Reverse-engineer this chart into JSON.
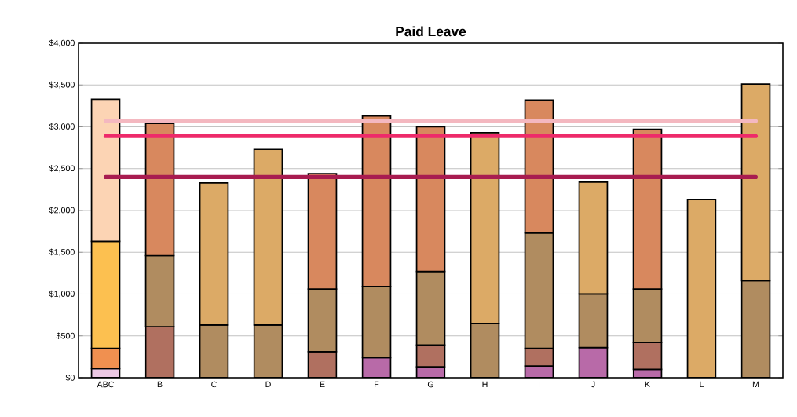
{
  "chart_data": {
    "type": "bar",
    "title": "Paid Leave",
    "stacked": true,
    "grid": "y",
    "categories": [
      "ABC",
      "B",
      "C",
      "D",
      "E",
      "F",
      "G",
      "H",
      "I",
      "J",
      "K",
      "L",
      "M"
    ],
    "ylim": [
      0,
      4000
    ],
    "yticks": [
      {
        "value": 0,
        "label": "$0"
      },
      {
        "value": 500,
        "label": "$500"
      },
      {
        "value": 1000,
        "label": "$1,000"
      },
      {
        "value": 1500,
        "label": "$1,500"
      },
      {
        "value": 2000,
        "label": "$2,000"
      },
      {
        "value": 2500,
        "label": "$2,500"
      },
      {
        "value": 3000,
        "label": "$3,000"
      },
      {
        "value": 3500,
        "label": "$3,500"
      },
      {
        "value": 4000,
        "label": "$4,000"
      }
    ],
    "series": [
      {
        "color": "#ecc8e4",
        "values": [
          110,
          null,
          null,
          null,
          null,
          null,
          null,
          null,
          null,
          null,
          null,
          null,
          null
        ]
      },
      {
        "color": "#f09050",
        "values": [
          240,
          null,
          null,
          null,
          null,
          null,
          null,
          null,
          null,
          null,
          null,
          null,
          null
        ]
      },
      {
        "color": "#fcc050",
        "values": [
          1280,
          null,
          null,
          null,
          null,
          null,
          null,
          null,
          null,
          null,
          null,
          null,
          null
        ]
      },
      {
        "color": "#fcd4b4",
        "values": [
          1700,
          null,
          null,
          null,
          null,
          null,
          null,
          null,
          null,
          null,
          null,
          null,
          null
        ]
      },
      {
        "color": "#b86aa8",
        "values": [
          null,
          null,
          null,
          null,
          null,
          240,
          130,
          null,
          140,
          360,
          100,
          null,
          null
        ]
      },
      {
        "color": "#b07060",
        "values": [
          null,
          610,
          null,
          null,
          310,
          null,
          260,
          null,
          210,
          null,
          320,
          null,
          null
        ]
      },
      {
        "color": "#b08c60",
        "values": [
          null,
          850,
          630,
          630,
          750,
          850,
          880,
          650,
          1380,
          640,
          640,
          null,
          1160
        ]
      },
      {
        "color": "#dcaa66",
        "values": [
          null,
          null,
          1700,
          2100,
          null,
          null,
          null,
          2280,
          null,
          1340,
          null,
          2130,
          2350
        ]
      },
      {
        "color": "#d8885e",
        "values": [
          null,
          1580,
          null,
          null,
          1380,
          2040,
          1730,
          null,
          1590,
          null,
          1910,
          null,
          null
        ]
      },
      {
        "type": "line",
        "color": "#f4b8c0",
        "values": [
          3070,
          3070,
          3070,
          3070,
          3070,
          3070,
          3070,
          3070,
          3070,
          3070,
          3070,
          3070,
          3070
        ]
      },
      {
        "type": "line",
        "color": "#ee2a6a",
        "values": [
          2890,
          2890,
          2890,
          2890,
          2890,
          2890,
          2890,
          2890,
          2890,
          2890,
          2890,
          2890,
          2890
        ]
      },
      {
        "type": "line",
        "color": "#a81c50",
        "values": [
          2400,
          2400,
          2400,
          2400,
          2400,
          2400,
          2400,
          2400,
          2400,
          2400,
          2400,
          2400,
          2400
        ]
      }
    ]
  }
}
